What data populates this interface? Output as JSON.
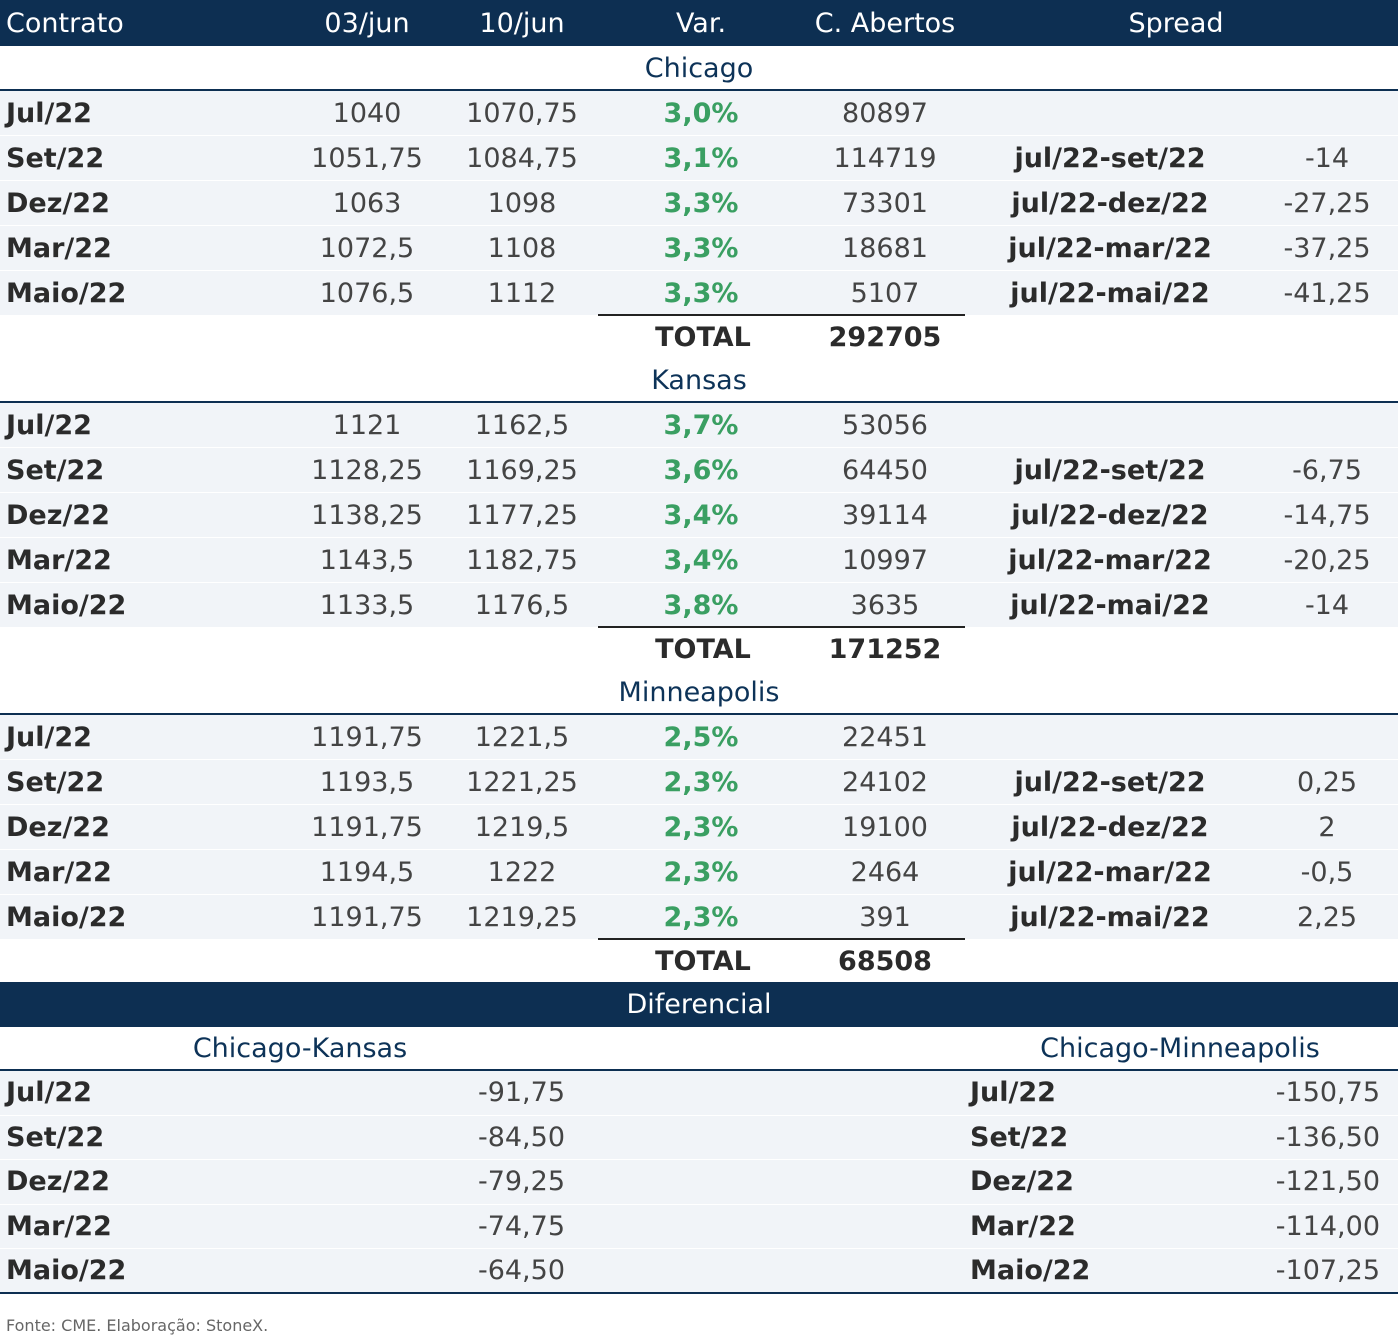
{
  "header": [
    "Contrato",
    "03/jun",
    "10/jun",
    "Var.",
    "C. Abertos",
    "Spread"
  ],
  "sections": [
    {
      "title": "Chicago",
      "rows": [
        [
          "Jul/22",
          "1040",
          "1070,75",
          "3,0%",
          "80897"
        ],
        [
          "Set/22",
          "1051,75",
          "1084,75",
          "3,1%",
          "114719",
          "jul/22-set/22",
          "-14"
        ],
        [
          "Dez/22",
          "1063",
          "1098",
          "3,3%",
          "73301",
          "jul/22-dez/22",
          "-27,25"
        ],
        [
          "Mar/22",
          "1072,5",
          "1108",
          "3,3%",
          "18681",
          "jul/22-mar/22",
          "-37,25"
        ],
        [
          "Maio/22",
          "1076,5",
          "1112",
          "3,3%",
          "5107",
          "jul/22-mai/22",
          "-41,25"
        ]
      ],
      "total_label": "TOTAL",
      "total": "292705"
    },
    {
      "title": "Kansas",
      "rows": [
        [
          "Jul/22",
          "1121",
          "1162,5",
          "3,7%",
          "53056"
        ],
        [
          "Set/22",
          "1128,25",
          "1169,25",
          "3,6%",
          "64450",
          "jul/22-set/22",
          "-6,75"
        ],
        [
          "Dez/22",
          "1138,25",
          "1177,25",
          "3,4%",
          "39114",
          "jul/22-dez/22",
          "-14,75"
        ],
        [
          "Mar/22",
          "1143,5",
          "1182,75",
          "3,4%",
          "10997",
          "jul/22-mar/22",
          "-20,25"
        ],
        [
          "Maio/22",
          "1133,5",
          "1176,5",
          "3,8%",
          "3635",
          "jul/22-mai/22",
          "-14"
        ]
      ],
      "total_label": "TOTAL",
      "total": "171252"
    },
    {
      "title": "Minneapolis",
      "rows": [
        [
          "Jul/22",
          "1191,75",
          "1221,5",
          "2,5%",
          "22451"
        ],
        [
          "Set/22",
          "1193,5",
          "1221,25",
          "2,3%",
          "24102",
          "jul/22-set/22",
          "0,25"
        ],
        [
          "Dez/22",
          "1191,75",
          "1219,5",
          "2,3%",
          "19100",
          "jul/22-dez/22",
          "2"
        ],
        [
          "Mar/22",
          "1194,5",
          "1222",
          "2,3%",
          "2464",
          "jul/22-mar/22",
          "-0,5"
        ],
        [
          "Maio/22",
          "1191,75",
          "1219,25",
          "2,3%",
          "391",
          "jul/22-mai/22",
          "2,25"
        ]
      ],
      "total_label": "TOTAL",
      "total": "68508"
    }
  ],
  "diferencial": {
    "title": "Diferencial",
    "groups": [
      {
        "title": "Chicago-Kansas",
        "rows": [
          [
            "Jul/22",
            "-91,75"
          ],
          [
            "Set/22",
            "-84,50"
          ],
          [
            "Dez/22",
            "-79,25"
          ],
          [
            "Mar/22",
            "-74,75"
          ],
          [
            "Maio/22",
            "-64,50"
          ]
        ]
      },
      {
        "title": "Chicago-Minneapolis",
        "rows": [
          [
            "Jul/22",
            "-150,75"
          ],
          [
            "Set/22",
            "-136,50"
          ],
          [
            "Dez/22",
            "-121,50"
          ],
          [
            "Mar/22",
            "-114,00"
          ],
          [
            "Maio/22",
            "-107,25"
          ]
        ]
      }
    ]
  },
  "footer": "Fonte: CME. Elaboração: StoneX."
}
